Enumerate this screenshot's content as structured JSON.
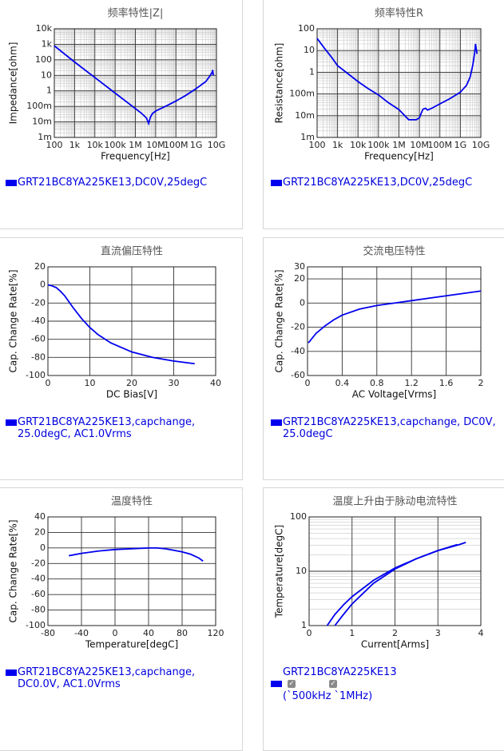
{
  "chart_data": [
    {
      "type": "line",
      "title": "频率特性|Z|",
      "x_label": "Frequency[Hz]",
      "y_label": "Impedance[ohm]",
      "log_x": true,
      "log_y": true,
      "grid": true,
      "xlim": [
        100,
        10000000000
      ],
      "ylim": [
        0.001,
        10000
      ],
      "xticks": [
        100,
        {
          "value": 1000,
          "label": "1k"
        },
        {
          "value": 10000,
          "label": "10k"
        },
        {
          "value": 100000,
          "label": "100k"
        },
        {
          "value": 1000000,
          "label": "1M"
        },
        {
          "value": 10000000,
          "label": "10M"
        },
        {
          "value": 100000000,
          "label": "100M"
        },
        {
          "value": 1000000000,
          "label": "1G"
        },
        {
          "value": 10000000000,
          "label": "10G"
        }
      ],
      "yticks": [
        {
          "value": 0.001,
          "label": "1m"
        },
        {
          "value": 0.01,
          "label": "10m"
        },
        {
          "value": 0.1,
          "label": "100m"
        },
        1,
        10,
        100,
        {
          "value": 1000,
          "label": "1k"
        },
        {
          "value": 10000,
          "label": "10k"
        }
      ],
      "series": [
        {
          "name": "GRT21BC8YA225KE13,DC0V,25degC",
          "color": "#0000ee",
          "x": [
            100,
            1000,
            10000,
            100000,
            1000000,
            2000000,
            3500000,
            4500000,
            5500000,
            7000000,
            10000000,
            30000000,
            100000000,
            300000000,
            1000000000,
            3000000000,
            5000000000,
            6000000000,
            6500000000,
            7000000000
          ],
          "values": [
            800,
            72,
            7.2,
            0.72,
            0.072,
            0.036,
            0.018,
            0.008,
            0.02,
            0.035,
            0.05,
            0.1,
            0.22,
            0.5,
            1.4,
            4,
            10,
            15,
            22,
            10
          ]
        }
      ]
    },
    {
      "type": "line",
      "title": "频率特性R",
      "x_label": "Frequency[Hz]",
      "y_label": "Resistance[ohm]",
      "log_x": true,
      "log_y": true,
      "grid": true,
      "xlim": [
        100,
        10000000000
      ],
      "ylim": [
        0.001,
        100
      ],
      "xticks": [
        100,
        {
          "value": 1000,
          "label": "1k"
        },
        {
          "value": 10000,
          "label": "10k"
        },
        {
          "value": 100000,
          "label": "100k"
        },
        {
          "value": 1000000,
          "label": "1M"
        },
        {
          "value": 10000000,
          "label": "10M"
        },
        {
          "value": 100000000,
          "label": "100M"
        },
        {
          "value": 1000000000,
          "label": "1G"
        },
        {
          "value": 10000000000,
          "label": "10G"
        }
      ],
      "yticks": [
        {
          "value": 0.001,
          "label": "1m"
        },
        {
          "value": 0.01,
          "label": "10m"
        },
        {
          "value": 0.1,
          "label": "100m"
        },
        1,
        10,
        100
      ],
      "series": [
        {
          "name": "GRT21BC8YA225KE13,DC0V,25degC",
          "color": "#0000ee",
          "x": [
            100,
            200,
            500,
            1000,
            3000,
            10000,
            30000,
            100000,
            300000,
            1000000,
            3000000,
            7000000,
            10000000,
            13000000,
            15000000,
            20000000,
            25000000,
            40000000,
            100000000,
            300000000,
            1000000000,
            2000000000,
            3000000000,
            4000000000,
            5000000000,
            5500000000,
            6500000000
          ],
          "values": [
            36,
            15,
            5,
            2,
            0.9,
            0.37,
            0.18,
            0.09,
            0.04,
            0.019,
            0.0065,
            0.0065,
            0.008,
            0.015,
            0.02,
            0.022,
            0.018,
            0.022,
            0.035,
            0.06,
            0.12,
            0.25,
            0.6,
            2,
            8,
            20,
            7
          ]
        }
      ]
    },
    {
      "type": "line",
      "title": "直流偏压特性",
      "x_label": "DC Bias[V]",
      "y_label": "Cap. Change Rate[%]",
      "grid": true,
      "xlim": [
        0,
        40
      ],
      "ylim": [
        -100,
        20
      ],
      "xticks": [
        0,
        10,
        20,
        30,
        40
      ],
      "yticks": [
        20,
        0,
        -20,
        -40,
        -60,
        -80,
        -100
      ],
      "series": [
        {
          "name": "GRT21BC8YA225KE13,capchange, 25.0degC, AC1.0Vrms",
          "color": "#0000ee",
          "x": [
            0,
            1,
            2,
            3,
            4,
            6,
            8,
            10,
            12,
            15,
            20,
            25,
            30,
            35
          ],
          "values": [
            0,
            -1,
            -3,
            -7,
            -12,
            -25,
            -37,
            -47,
            -55,
            -64,
            -74,
            -80,
            -84,
            -87
          ]
        }
      ]
    },
    {
      "type": "line",
      "title": "交流电压特性",
      "x_label": "AC Voltage[Vrms]",
      "y_label": "Cap. Change Rate[%]",
      "grid": true,
      "xlim": [
        0,
        2
      ],
      "ylim": [
        -60,
        30
      ],
      "xticks": [
        0,
        0.4,
        0.8,
        1.2,
        1.6,
        2
      ],
      "yticks": [
        30,
        20,
        0,
        -20,
        -40,
        -60
      ],
      "series": [
        {
          "name": "GRT21BC8YA225KE13,capchange, DC0V, 25.0degC",
          "color": "#0000ee",
          "x": [
            0.01,
            0.1,
            0.2,
            0.3,
            0.4,
            0.6,
            0.8,
            1,
            1.2,
            1.4,
            1.6,
            1.8,
            2
          ],
          "values": [
            -33,
            -25,
            -19,
            -14,
            -10,
            -5,
            -2,
            0,
            2,
            4,
            6,
            8,
            10
          ]
        }
      ]
    },
    {
      "type": "line",
      "title": "温度特性",
      "x_label": "Temperature[degC]",
      "y_label": "Cap. Change Rate[%]",
      "grid": true,
      "xlim": [
        -80,
        120
      ],
      "ylim": [
        -100,
        40
      ],
      "xticks": [
        -80,
        -40,
        0,
        40,
        80,
        120
      ],
      "yticks": [
        40,
        20,
        0,
        -20,
        -40,
        -60,
        -80,
        -100
      ],
      "series": [
        {
          "name": "GRT21BC8YA225KE13,capchange, DC0.0V, AC1.0Vrms",
          "color": "#0000ee",
          "x": [
            -55,
            -40,
            -20,
            0,
            20,
            40,
            50,
            60,
            70,
            80,
            90,
            100,
            105
          ],
          "values": [
            -10,
            -7,
            -4,
            -2,
            -1,
            0,
            0,
            -1,
            -3,
            -5,
            -8,
            -13,
            -17
          ]
        }
      ]
    },
    {
      "type": "line",
      "title": "温度上升由于脉动电流特性",
      "x_label": "Current[Arms]",
      "y_label": "Temperature[degC]",
      "log_y": true,
      "grid": true,
      "xlim": [
        0,
        4
      ],
      "ylim": [
        1,
        100
      ],
      "xticks": [
        0,
        1,
        2,
        3,
        4
      ],
      "yticks": [
        1,
        10,
        100
      ],
      "legend_title": "GRT21BC8YA225KE13",
      "series": [
        {
          "name": "(`500kHz",
          "color": "#0000ee",
          "x": [
            0.42,
            0.6,
            0.8,
            1,
            1.5,
            2,
            2.5,
            3,
            3.45
          ],
          "values": [
            1,
            1.6,
            2.4,
            3.4,
            6.8,
            11.5,
            17,
            24,
            31
          ]
        },
        {
          "name": "`1MHz)",
          "color": "#0000ee",
          "x": [
            0.6,
            0.8,
            1,
            1.5,
            2,
            2.5,
            3,
            3.5,
            3.65
          ],
          "values": [
            1,
            1.6,
            2.5,
            6,
            11,
            17,
            24,
            31,
            34
          ]
        }
      ]
    }
  ]
}
